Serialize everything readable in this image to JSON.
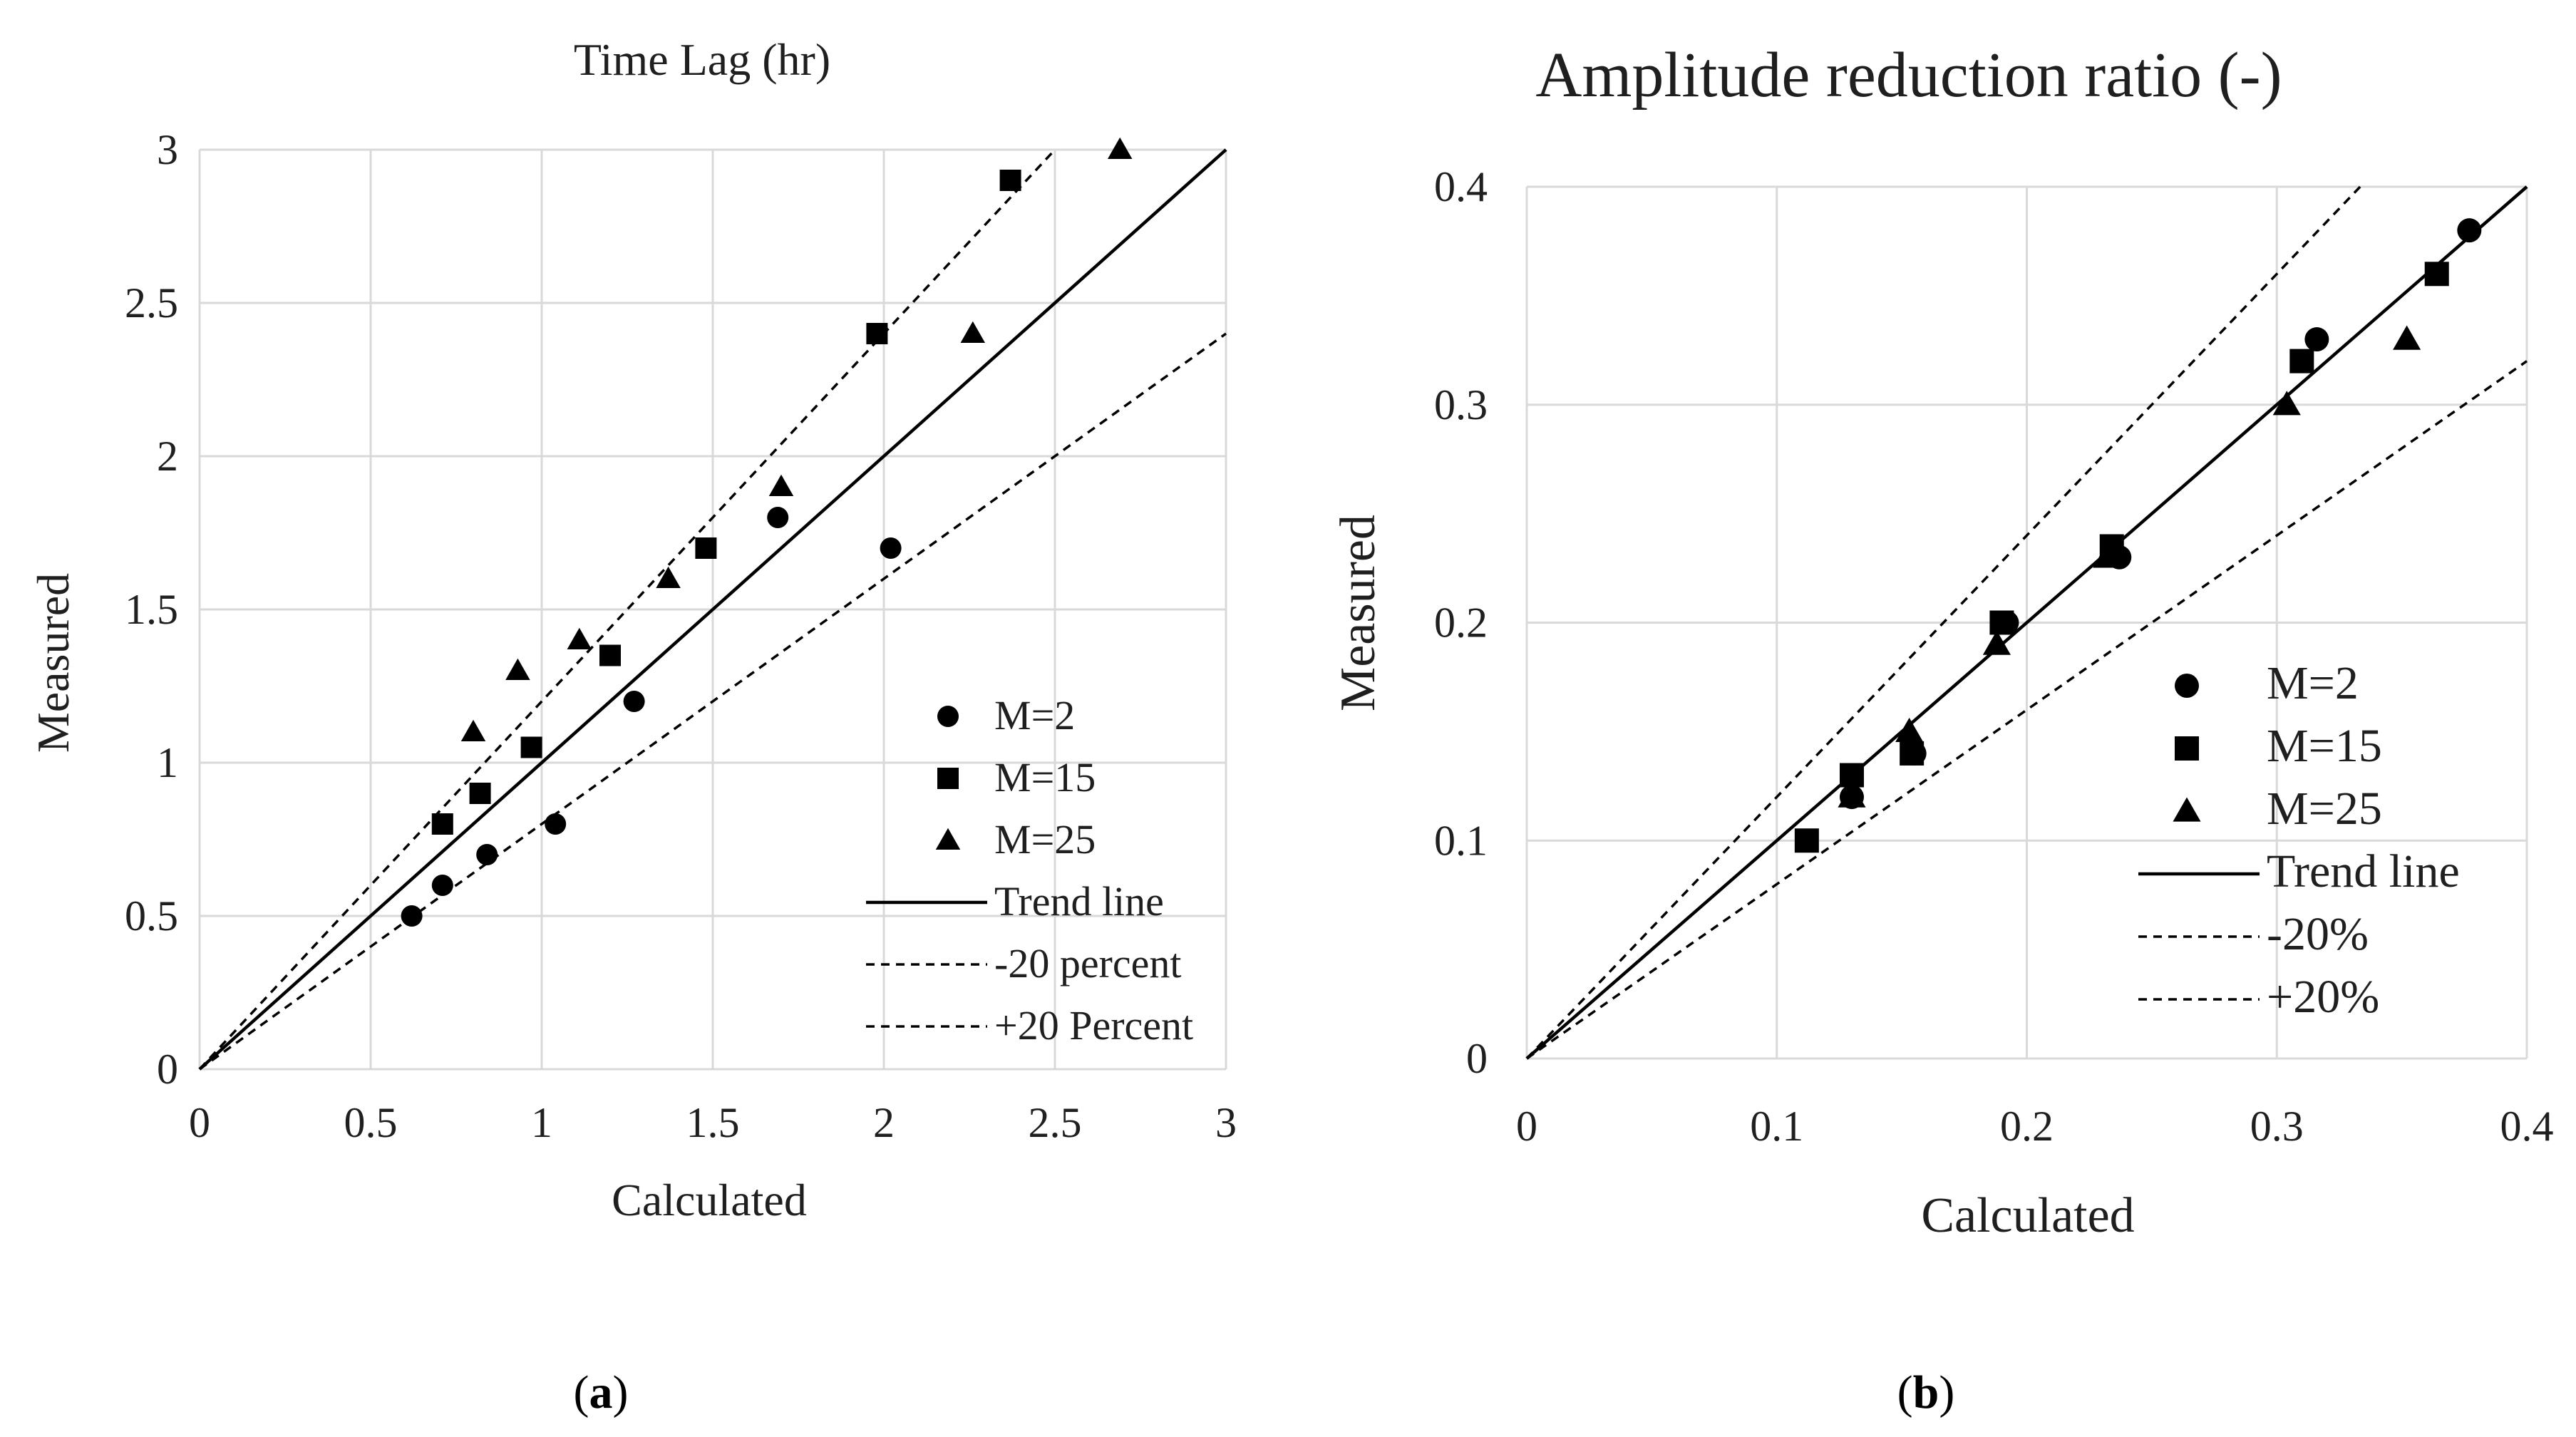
{
  "colors": {
    "grid": "#d9d9d9",
    "ink": "#000000"
  },
  "chart_data": [
    {
      "type": "scatter",
      "title": "Time Lag (hr)",
      "xlabel": "Calculated",
      "ylabel": "Measured",
      "xlim": [
        0,
        3
      ],
      "ylim": [
        0,
        3
      ],
      "xticks": [
        "0",
        "0.5",
        "1",
        "1.5",
        "2",
        "2.5",
        "3"
      ],
      "yticks": [
        "0",
        "0.5",
        "1",
        "1.5",
        "2",
        "2.5",
        "3"
      ],
      "grid": true,
      "caption_open": "(",
      "caption_letter": "a",
      "caption_close": ")",
      "series": [
        {
          "name": "M=2",
          "marker": "circle",
          "x": [
            0.62,
            0.71,
            0.84,
            1.04,
            1.27,
            1.69,
            2.02
          ],
          "y": [
            0.5,
            0.6,
            0.7,
            0.8,
            1.2,
            1.8,
            1.7
          ]
        },
        {
          "name": "M=15",
          "marker": "square",
          "x": [
            0.71,
            0.82,
            0.97,
            1.2,
            1.48,
            1.98,
            2.37
          ],
          "y": [
            0.8,
            0.9,
            1.05,
            1.35,
            1.7,
            2.4,
            2.9
          ]
        },
        {
          "name": "M=25",
          "marker": "triangle",
          "x": [
            0.8,
            0.93,
            1.11,
            1.37,
            1.7,
            2.26,
            2.69
          ],
          "y": [
            1.1,
            1.3,
            1.4,
            1.6,
            1.9,
            2.4,
            3.0
          ]
        }
      ],
      "lines": [
        {
          "name": "Trend line",
          "style": "solid",
          "slope": 1.0
        },
        {
          "name": "-20 percent",
          "style": "dashed",
          "slope": 1.2
        },
        {
          "name": "+20 Percent",
          "style": "dashed",
          "slope": 0.8
        }
      ]
    },
    {
      "type": "scatter",
      "title": "Amplitude reduction ratio (-)",
      "xlabel": "Calculated",
      "ylabel": "Measured",
      "xlim": [
        0,
        0.4
      ],
      "ylim": [
        0,
        0.4
      ],
      "xticks": [
        "0",
        "0.1",
        "0.2",
        "0.3",
        "0.4"
      ],
      "yticks": [
        "0",
        "0.1",
        "0.2",
        "0.3",
        "0.4"
      ],
      "grid": true,
      "caption_open": "(",
      "caption_letter": "b",
      "caption_close": ")",
      "series": [
        {
          "name": "M=2",
          "marker": "circle",
          "x": [
            0.13,
            0.155,
            0.192,
            0.237,
            0.316,
            0.377
          ],
          "y": [
            0.12,
            0.14,
            0.2,
            0.23,
            0.33,
            0.38
          ]
        },
        {
          "name": "M=15",
          "marker": "square",
          "x": [
            0.112,
            0.13,
            0.154,
            0.19,
            0.234,
            0.31,
            0.364
          ],
          "y": [
            0.1,
            0.13,
            0.14,
            0.2,
            0.235,
            0.32,
            0.36
          ]
        },
        {
          "name": "M=25",
          "marker": "triangle",
          "x": [
            0.13,
            0.153,
            0.188,
            0.232,
            0.304,
            0.352
          ],
          "y": [
            0.12,
            0.15,
            0.19,
            0.23,
            0.3,
            0.33
          ]
        }
      ],
      "lines": [
        {
          "name": "Trend line",
          "style": "solid",
          "slope": 1.0
        },
        {
          "name": "-20%",
          "style": "dashed",
          "slope": 1.2
        },
        {
          "name": "+20%",
          "style": "dashed",
          "slope": 0.8
        }
      ]
    }
  ]
}
